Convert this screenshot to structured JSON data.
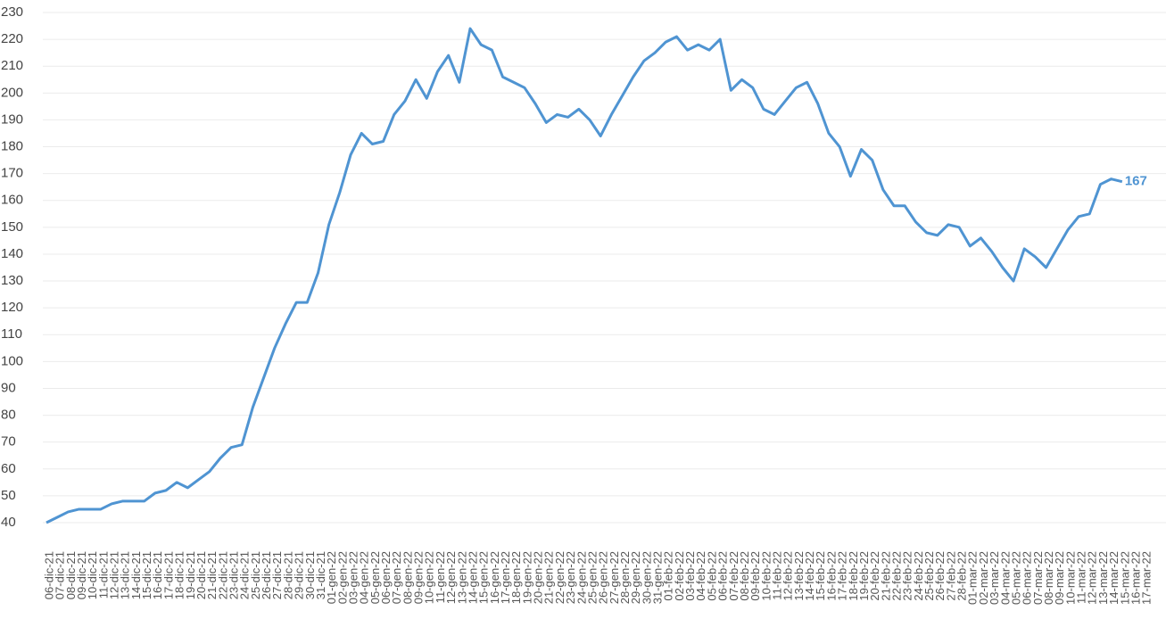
{
  "chart_data": {
    "type": "line",
    "categories": [
      "06-dic-21",
      "07-dic-21",
      "08-dic-21",
      "09-dic-21",
      "10-dic-21",
      "11-dic-21",
      "12-dic-21",
      "13-dic-21",
      "14-dic-21",
      "15-dic-21",
      "16-dic-21",
      "17-dic-21",
      "18-dic-21",
      "19-dic-21",
      "20-dic-21",
      "21-dic-21",
      "22-dic-21",
      "23-dic-21",
      "24-dic-21",
      "25-dic-21",
      "26-dic-21",
      "27-dic-21",
      "28-dic-21",
      "29-dic-21",
      "30-dic-21",
      "31-dic-21",
      "01-gen-22",
      "02-gen-22",
      "03-gen-22",
      "04-gen-22",
      "05-gen-22",
      "06-gen-22",
      "07-gen-22",
      "08-gen-22",
      "09-gen-22",
      "10-gen-22",
      "11-gen-22",
      "12-gen-22",
      "13-gen-22",
      "14-gen-22",
      "15-gen-22",
      "16-gen-22",
      "17-gen-22",
      "18-gen-22",
      "19-gen-22",
      "20-gen-22",
      "21-gen-22",
      "22-gen-22",
      "23-gen-22",
      "24-gen-22",
      "25-gen-22",
      "26-gen-22",
      "27-gen-22",
      "28-gen-22",
      "29-gen-22",
      "30-gen-22",
      "31-gen-22",
      "01-feb-22",
      "02-feb-22",
      "03-feb-22",
      "04-feb-22",
      "05-feb-22",
      "06-feb-22",
      "07-feb-22",
      "08-feb-22",
      "09-feb-22",
      "10-feb-22",
      "11-feb-22",
      "12-feb-22",
      "13-feb-22",
      "14-feb-22",
      "15-feb-22",
      "16-feb-22",
      "17-feb-22",
      "18-feb-22",
      "19-feb-22",
      "20-feb-22",
      "21-feb-22",
      "22-feb-22",
      "23-feb-22",
      "24-feb-22",
      "25-feb-22",
      "26-feb-22",
      "27-feb-22",
      "28-feb-22",
      "01-mar-22",
      "02-mar-22",
      "03-mar-22",
      "04-mar-22",
      "05-mar-22",
      "06-mar-22",
      "07-mar-22",
      "08-mar-22",
      "09-mar-22",
      "10-mar-22",
      "11-mar-22",
      "12-mar-22",
      "13-mar-22",
      "14-mar-22",
      "15-mar-22",
      "16-mar-22",
      "17-mar-22"
    ],
    "series": [
      {
        "color": "#4f94d2",
        "values": [
          40,
          42,
          44,
          45,
          45,
          45,
          47,
          48,
          48,
          48,
          51,
          52,
          55,
          53,
          56,
          59,
          64,
          68,
          69,
          83,
          94,
          105,
          114,
          122,
          122,
          133,
          151,
          163,
          177,
          185,
          181,
          182,
          192,
          197,
          205,
          198,
          208,
          214,
          204,
          224,
          218,
          216,
          206,
          204,
          202,
          196,
          189,
          192,
          191,
          194,
          190,
          184,
          192,
          199,
          206,
          212,
          215,
          219,
          221,
          216,
          218,
          216,
          220,
          201,
          205,
          202,
          194,
          192,
          197,
          202,
          204,
          196,
          185,
          180,
          169,
          179,
          175,
          164,
          158,
          158,
          152,
          148,
          147,
          151,
          150,
          143,
          146,
          141,
          135,
          130,
          142,
          139,
          135,
          142,
          149,
          154,
          155,
          166,
          168,
          167,
          null,
          null
        ]
      }
    ],
    "label_last": true,
    "ylim": [
      40,
      230
    ],
    "yticks": [
      40,
      50,
      60,
      70,
      80,
      90,
      100,
      110,
      120,
      130,
      140,
      150,
      160,
      170,
      180,
      190,
      200,
      210,
      220,
      230
    ],
    "grid": true
  }
}
